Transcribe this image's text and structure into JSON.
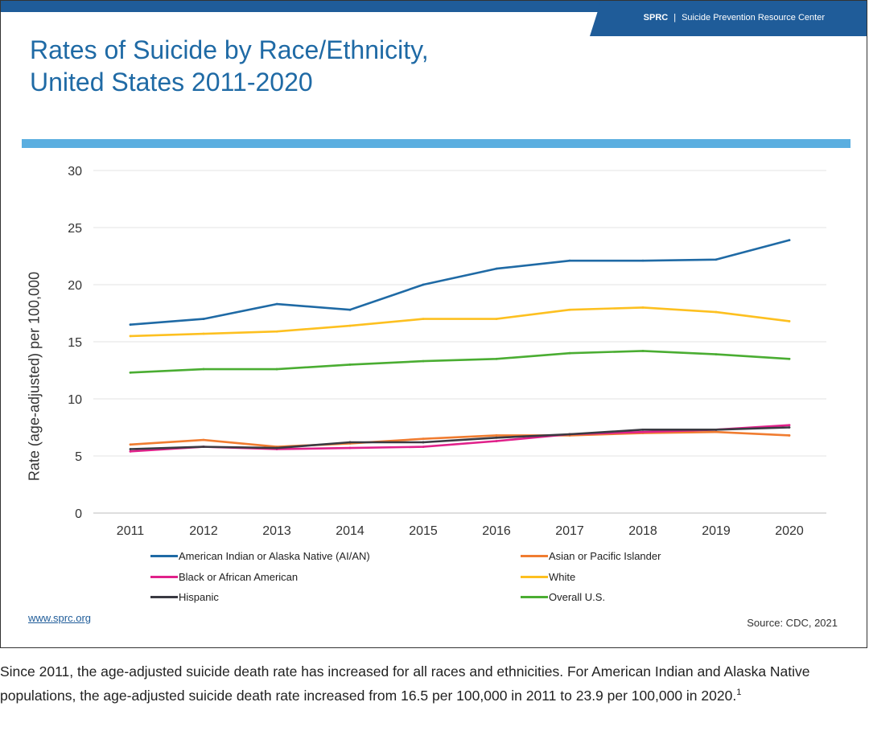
{
  "header": {
    "brand": "SPRC",
    "separator": "|",
    "org": "Suicide Prevention Resource Center"
  },
  "title": {
    "line1": "Rates of Suicide by Race/Ethnicity,",
    "line2": "United States 2011-2020"
  },
  "chart_data": {
    "type": "line",
    "title": "Rates of Suicide by Race/Ethnicity, United States 2011-2020",
    "xlabel": "",
    "ylabel": "Rate (age-adjusted) per 100,000",
    "ylim": [
      0,
      30
    ],
    "yticks": [
      0,
      5,
      10,
      15,
      20,
      25,
      30
    ],
    "grid": true,
    "legend_position": "bottom",
    "x": [
      "2011",
      "2012",
      "2013",
      "2014",
      "2015",
      "2016",
      "2017",
      "2018",
      "2019",
      "2020"
    ],
    "series": [
      {
        "name": "American Indian or Alaska Native (AI/AN)",
        "color": "#1f6aa5",
        "values": [
          16.5,
          17.0,
          18.3,
          17.8,
          20.0,
          21.4,
          22.1,
          22.1,
          22.2,
          23.9
        ]
      },
      {
        "name": "Asian or Pacific Islander",
        "color": "#f07c30",
        "values": [
          6.0,
          6.4,
          5.8,
          6.1,
          6.5,
          6.8,
          6.8,
          7.0,
          7.1,
          6.8
        ]
      },
      {
        "name": "Black or African American",
        "color": "#e0218a",
        "values": [
          5.4,
          5.8,
          5.6,
          5.7,
          5.8,
          6.3,
          6.9,
          7.1,
          7.3,
          7.7
        ]
      },
      {
        "name": "White",
        "color": "#fdc020",
        "values": [
          15.5,
          15.7,
          15.9,
          16.4,
          17.0,
          17.0,
          17.8,
          18.0,
          17.6,
          16.8
        ]
      },
      {
        "name": "Hispanic",
        "color": "#3a3a42",
        "values": [
          5.6,
          5.8,
          5.7,
          6.2,
          6.2,
          6.6,
          6.9,
          7.3,
          7.3,
          7.5
        ]
      },
      {
        "name": "Overall U.S.",
        "color": "#4aad32",
        "values": [
          12.3,
          12.6,
          12.6,
          13.0,
          13.3,
          13.5,
          14.0,
          14.2,
          13.9,
          13.5
        ]
      }
    ]
  },
  "footer": {
    "link": "www.sprc.org",
    "source": "Source: CDC, 2021"
  },
  "caption": {
    "text": "Since 2011, the age-adjusted suicide death rate has increased for all races and ethnicities. For American Indian and Alaska Native populations, the age-adjusted suicide death rate increased from 16.5 per 100,000 in 2011 to 23.9 per 100,000 in 2020.",
    "footnote": "1"
  }
}
